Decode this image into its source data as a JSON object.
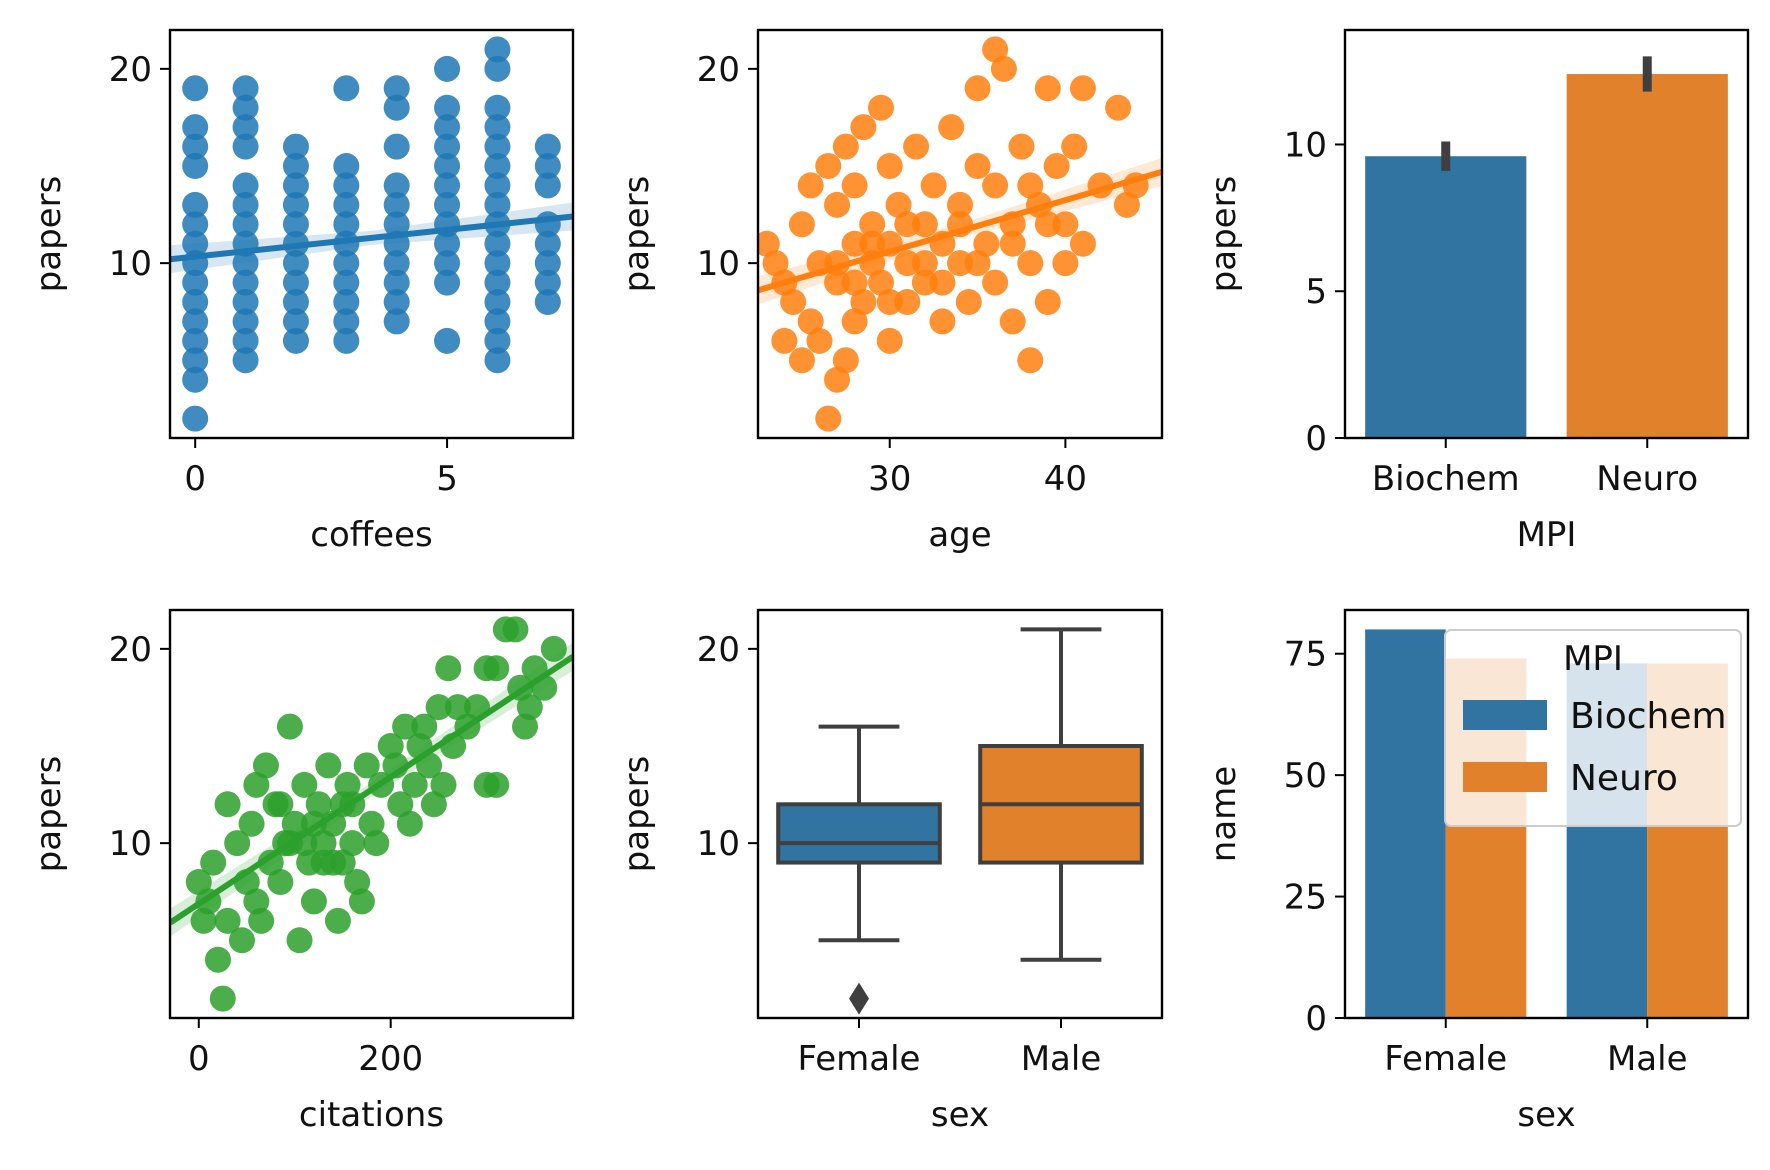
{
  "colors": {
    "blue": "#1f77b4",
    "orange": "#ff7f0e",
    "green": "#2ca02c",
    "bar_blue": "#3274a1",
    "bar_orange": "#e1812c",
    "line_dark": "#3f3f3f"
  },
  "chart_data": [
    {
      "type": "scatter",
      "xlabel": "coffees",
      "ylabel": "papers",
      "xlim": [
        -0.5,
        7.5
      ],
      "ylim": [
        1,
        22
      ],
      "xticks": [
        0,
        5
      ],
      "yticks": [
        10,
        20
      ],
      "color": "blue",
      "points": [
        [
          0,
          2
        ],
        [
          0,
          4
        ],
        [
          0,
          5
        ],
        [
          0,
          6
        ],
        [
          0,
          7
        ],
        [
          0,
          8
        ],
        [
          0,
          9
        ],
        [
          0,
          10
        ],
        [
          0,
          11
        ],
        [
          0,
          12
        ],
        [
          0,
          13
        ],
        [
          0,
          15
        ],
        [
          0,
          16
        ],
        [
          0,
          17
        ],
        [
          0,
          19
        ],
        [
          1,
          5
        ],
        [
          1,
          6
        ],
        [
          1,
          7
        ],
        [
          1,
          8
        ],
        [
          1,
          9
        ],
        [
          1,
          10
        ],
        [
          1,
          11
        ],
        [
          1,
          12
        ],
        [
          1,
          13
        ],
        [
          1,
          14
        ],
        [
          1,
          16
        ],
        [
          1,
          17
        ],
        [
          1,
          18
        ],
        [
          1,
          19
        ],
        [
          2,
          6
        ],
        [
          2,
          7
        ],
        [
          2,
          8
        ],
        [
          2,
          9
        ],
        [
          2,
          10
        ],
        [
          2,
          11
        ],
        [
          2,
          12
        ],
        [
          2,
          13
        ],
        [
          2,
          14
        ],
        [
          2,
          15
        ],
        [
          2,
          16
        ],
        [
          3,
          6
        ],
        [
          3,
          7
        ],
        [
          3,
          8
        ],
        [
          3,
          9
        ],
        [
          3,
          10
        ],
        [
          3,
          11
        ],
        [
          3,
          12
        ],
        [
          3,
          13
        ],
        [
          3,
          14
        ],
        [
          3,
          15
        ],
        [
          3,
          19
        ],
        [
          4,
          7
        ],
        [
          4,
          8
        ],
        [
          4,
          9
        ],
        [
          4,
          10
        ],
        [
          4,
          11
        ],
        [
          4,
          12
        ],
        [
          4,
          13
        ],
        [
          4,
          14
        ],
        [
          4,
          16
        ],
        [
          4,
          18
        ],
        [
          4,
          19
        ],
        [
          5,
          6
        ],
        [
          5,
          9
        ],
        [
          5,
          10
        ],
        [
          5,
          11
        ],
        [
          5,
          12
        ],
        [
          5,
          13
        ],
        [
          5,
          14
        ],
        [
          5,
          15
        ],
        [
          5,
          16
        ],
        [
          5,
          17
        ],
        [
          5,
          18
        ],
        [
          5,
          20
        ],
        [
          6,
          5
        ],
        [
          6,
          6
        ],
        [
          6,
          7
        ],
        [
          6,
          8
        ],
        [
          6,
          9
        ],
        [
          6,
          10
        ],
        [
          6,
          11
        ],
        [
          6,
          12
        ],
        [
          6,
          13
        ],
        [
          6,
          14
        ],
        [
          6,
          15
        ],
        [
          6,
          16
        ],
        [
          6,
          17
        ],
        [
          6,
          18
        ],
        [
          6,
          20
        ],
        [
          6,
          21
        ],
        [
          7,
          8
        ],
        [
          7,
          9
        ],
        [
          7,
          10
        ],
        [
          7,
          11
        ],
        [
          7,
          12
        ],
        [
          7,
          14
        ],
        [
          7,
          15
        ],
        [
          7,
          16
        ]
      ],
      "regression": [
        [
          -0.5,
          10.2
        ],
        [
          7.5,
          12.4
        ]
      ]
    },
    {
      "type": "scatter",
      "xlabel": "age",
      "ylabel": "papers",
      "xlim": [
        22.5,
        45.5
      ],
      "ylim": [
        1,
        22
      ],
      "xticks": [
        30,
        40
      ],
      "yticks": [
        10,
        20
      ],
      "color": "orange",
      "points": [
        [
          23,
          11
        ],
        [
          23.5,
          10
        ],
        [
          24,
          9
        ],
        [
          24,
          6
        ],
        [
          24.5,
          8
        ],
        [
          25,
          5
        ],
        [
          25,
          12
        ],
        [
          25.5,
          14
        ],
        [
          25.5,
          7
        ],
        [
          26,
          6
        ],
        [
          26,
          10
        ],
        [
          26.5,
          15
        ],
        [
          26.5,
          2
        ],
        [
          27,
          4
        ],
        [
          27,
          9
        ],
        [
          27,
          13
        ],
        [
          27.5,
          16
        ],
        [
          27.5,
          5
        ],
        [
          28,
          7
        ],
        [
          28,
          11
        ],
        [
          28,
          14
        ],
        [
          28.5,
          17
        ],
        [
          28.5,
          8
        ],
        [
          29,
          10
        ],
        [
          29,
          12
        ],
        [
          29.5,
          18
        ],
        [
          29.5,
          9
        ],
        [
          30,
          6
        ],
        [
          30,
          11
        ],
        [
          30,
          15
        ],
        [
          30.5,
          13
        ],
        [
          31,
          8
        ],
        [
          31,
          10
        ],
        [
          31.5,
          16
        ],
        [
          32,
          12
        ],
        [
          32,
          9
        ],
        [
          32.5,
          14
        ],
        [
          33,
          11
        ],
        [
          33,
          7
        ],
        [
          33.5,
          17
        ],
        [
          34,
          10
        ],
        [
          34,
          13
        ],
        [
          34.5,
          8
        ],
        [
          35,
          15
        ],
        [
          35,
          19
        ],
        [
          35.5,
          11
        ],
        [
          36,
          21
        ],
        [
          36,
          14
        ],
        [
          36,
          9
        ],
        [
          36.5,
          20
        ],
        [
          37,
          12
        ],
        [
          37,
          7
        ],
        [
          37.5,
          16
        ],
        [
          38,
          10
        ],
        [
          38,
          5
        ],
        [
          38.5,
          13
        ],
        [
          39,
          19
        ],
        [
          39,
          8
        ],
        [
          39.5,
          15
        ],
        [
          40,
          12
        ],
        [
          40,
          10
        ],
        [
          40.5,
          16
        ],
        [
          41,
          11
        ],
        [
          41,
          19
        ],
        [
          42,
          14
        ],
        [
          43,
          18
        ],
        [
          43.5,
          13
        ],
        [
          44,
          14
        ],
        [
          27,
          10
        ],
        [
          28,
          9
        ],
        [
          29,
          11
        ],
        [
          30,
          8
        ],
        [
          31,
          12
        ],
        [
          32,
          10
        ],
        [
          33,
          9
        ],
        [
          34,
          12
        ],
        [
          35,
          10
        ],
        [
          37,
          11
        ],
        [
          38,
          14
        ],
        [
          39,
          12
        ]
      ],
      "regression": [
        [
          22.5,
          8.6
        ],
        [
          45.5,
          14.7
        ]
      ]
    },
    {
      "type": "bar",
      "xlabel": "MPI",
      "ylabel": "papers",
      "categories": [
        "Biochem",
        "Neuro"
      ],
      "values": [
        9.6,
        12.4
      ],
      "errors": [
        [
          9.1,
          10.1
        ],
        [
          11.8,
          13.0
        ]
      ],
      "ylim": [
        0,
        13.9
      ],
      "yticks": [
        0,
        5,
        10
      ],
      "bar_colors": [
        "bar_blue",
        "bar_orange"
      ]
    },
    {
      "type": "scatter",
      "xlabel": "citations",
      "ylabel": "papers",
      "xlim": [
        -30,
        390
      ],
      "ylim": [
        1,
        22
      ],
      "xticks": [
        0,
        200
      ],
      "yticks": [
        10,
        20
      ],
      "color": "green",
      "points": [
        [
          0,
          8
        ],
        [
          5,
          6
        ],
        [
          10,
          7
        ],
        [
          15,
          9
        ],
        [
          20,
          4
        ],
        [
          25,
          2
        ],
        [
          30,
          12
        ],
        [
          30,
          6
        ],
        [
          40,
          10
        ],
        [
          45,
          5
        ],
        [
          50,
          8
        ],
        [
          55,
          11
        ],
        [
          60,
          13
        ],
        [
          60,
          7
        ],
        [
          65,
          6
        ],
        [
          70,
          14
        ],
        [
          75,
          9
        ],
        [
          80,
          12
        ],
        [
          85,
          8
        ],
        [
          90,
          10
        ],
        [
          95,
          16
        ],
        [
          100,
          11
        ],
        [
          105,
          5
        ],
        [
          110,
          13
        ],
        [
          115,
          9
        ],
        [
          120,
          7
        ],
        [
          125,
          12
        ],
        [
          130,
          10
        ],
        [
          135,
          14
        ],
        [
          140,
          11
        ],
        [
          145,
          6
        ],
        [
          150,
          9
        ],
        [
          155,
          13
        ],
        [
          160,
          12
        ],
        [
          165,
          8
        ],
        [
          170,
          7
        ],
        [
          175,
          14
        ],
        [
          180,
          11
        ],
        [
          185,
          10
        ],
        [
          190,
          13
        ],
        [
          200,
          15
        ],
        [
          205,
          14
        ],
        [
          210,
          12
        ],
        [
          215,
          16
        ],
        [
          220,
          11
        ],
        [
          225,
          13
        ],
        [
          230,
          15
        ],
        [
          235,
          16
        ],
        [
          240,
          14
        ],
        [
          245,
          12
        ],
        [
          250,
          17
        ],
        [
          255,
          13
        ],
        [
          260,
          19
        ],
        [
          265,
          15
        ],
        [
          270,
          17
        ],
        [
          280,
          16
        ],
        [
          290,
          17
        ],
        [
          300,
          13
        ],
        [
          300,
          19
        ],
        [
          310,
          13
        ],
        [
          310,
          19
        ],
        [
          320,
          21
        ],
        [
          330,
          21
        ],
        [
          335,
          18
        ],
        [
          340,
          16
        ],
        [
          345,
          17
        ],
        [
          350,
          19
        ],
        [
          360,
          18
        ],
        [
          370,
          20
        ],
        [
          85,
          12
        ],
        [
          95,
          10
        ],
        [
          110,
          10
        ],
        [
          120,
          11
        ],
        [
          130,
          9
        ],
        [
          140,
          9
        ],
        [
          150,
          12
        ],
        [
          160,
          10
        ]
      ],
      "regression": [
        [
          -30,
          5.9
        ],
        [
          390,
          19.6
        ]
      ]
    },
    {
      "type": "box",
      "xlabel": "sex",
      "ylabel": "papers",
      "categories": [
        "Female",
        "Male"
      ],
      "ylim": [
        1,
        22
      ],
      "yticks": [
        10,
        20
      ],
      "boxes": [
        {
          "whisker_low": 5,
          "q1": 9,
          "median": 10,
          "q3": 12,
          "whisker_high": 16,
          "outliers": [
            2
          ],
          "color": "bar_blue"
        },
        {
          "whisker_low": 4,
          "q1": 9,
          "median": 12,
          "q3": 15,
          "whisker_high": 21,
          "outliers": [],
          "color": "bar_orange"
        }
      ]
    },
    {
      "type": "bar",
      "xlabel": "sex",
      "ylabel": "name",
      "categories": [
        "Female",
        "Male"
      ],
      "series": [
        {
          "name": "Biochem",
          "values": [
            80,
            73
          ],
          "color": "bar_blue"
        },
        {
          "name": "Neuro",
          "values": [
            74,
            73
          ],
          "color": "bar_orange"
        }
      ],
      "ylim": [
        0,
        84
      ],
      "yticks": [
        0,
        25,
        50,
        75
      ],
      "legend": {
        "title": "MPI",
        "placement": "top-right"
      }
    }
  ]
}
